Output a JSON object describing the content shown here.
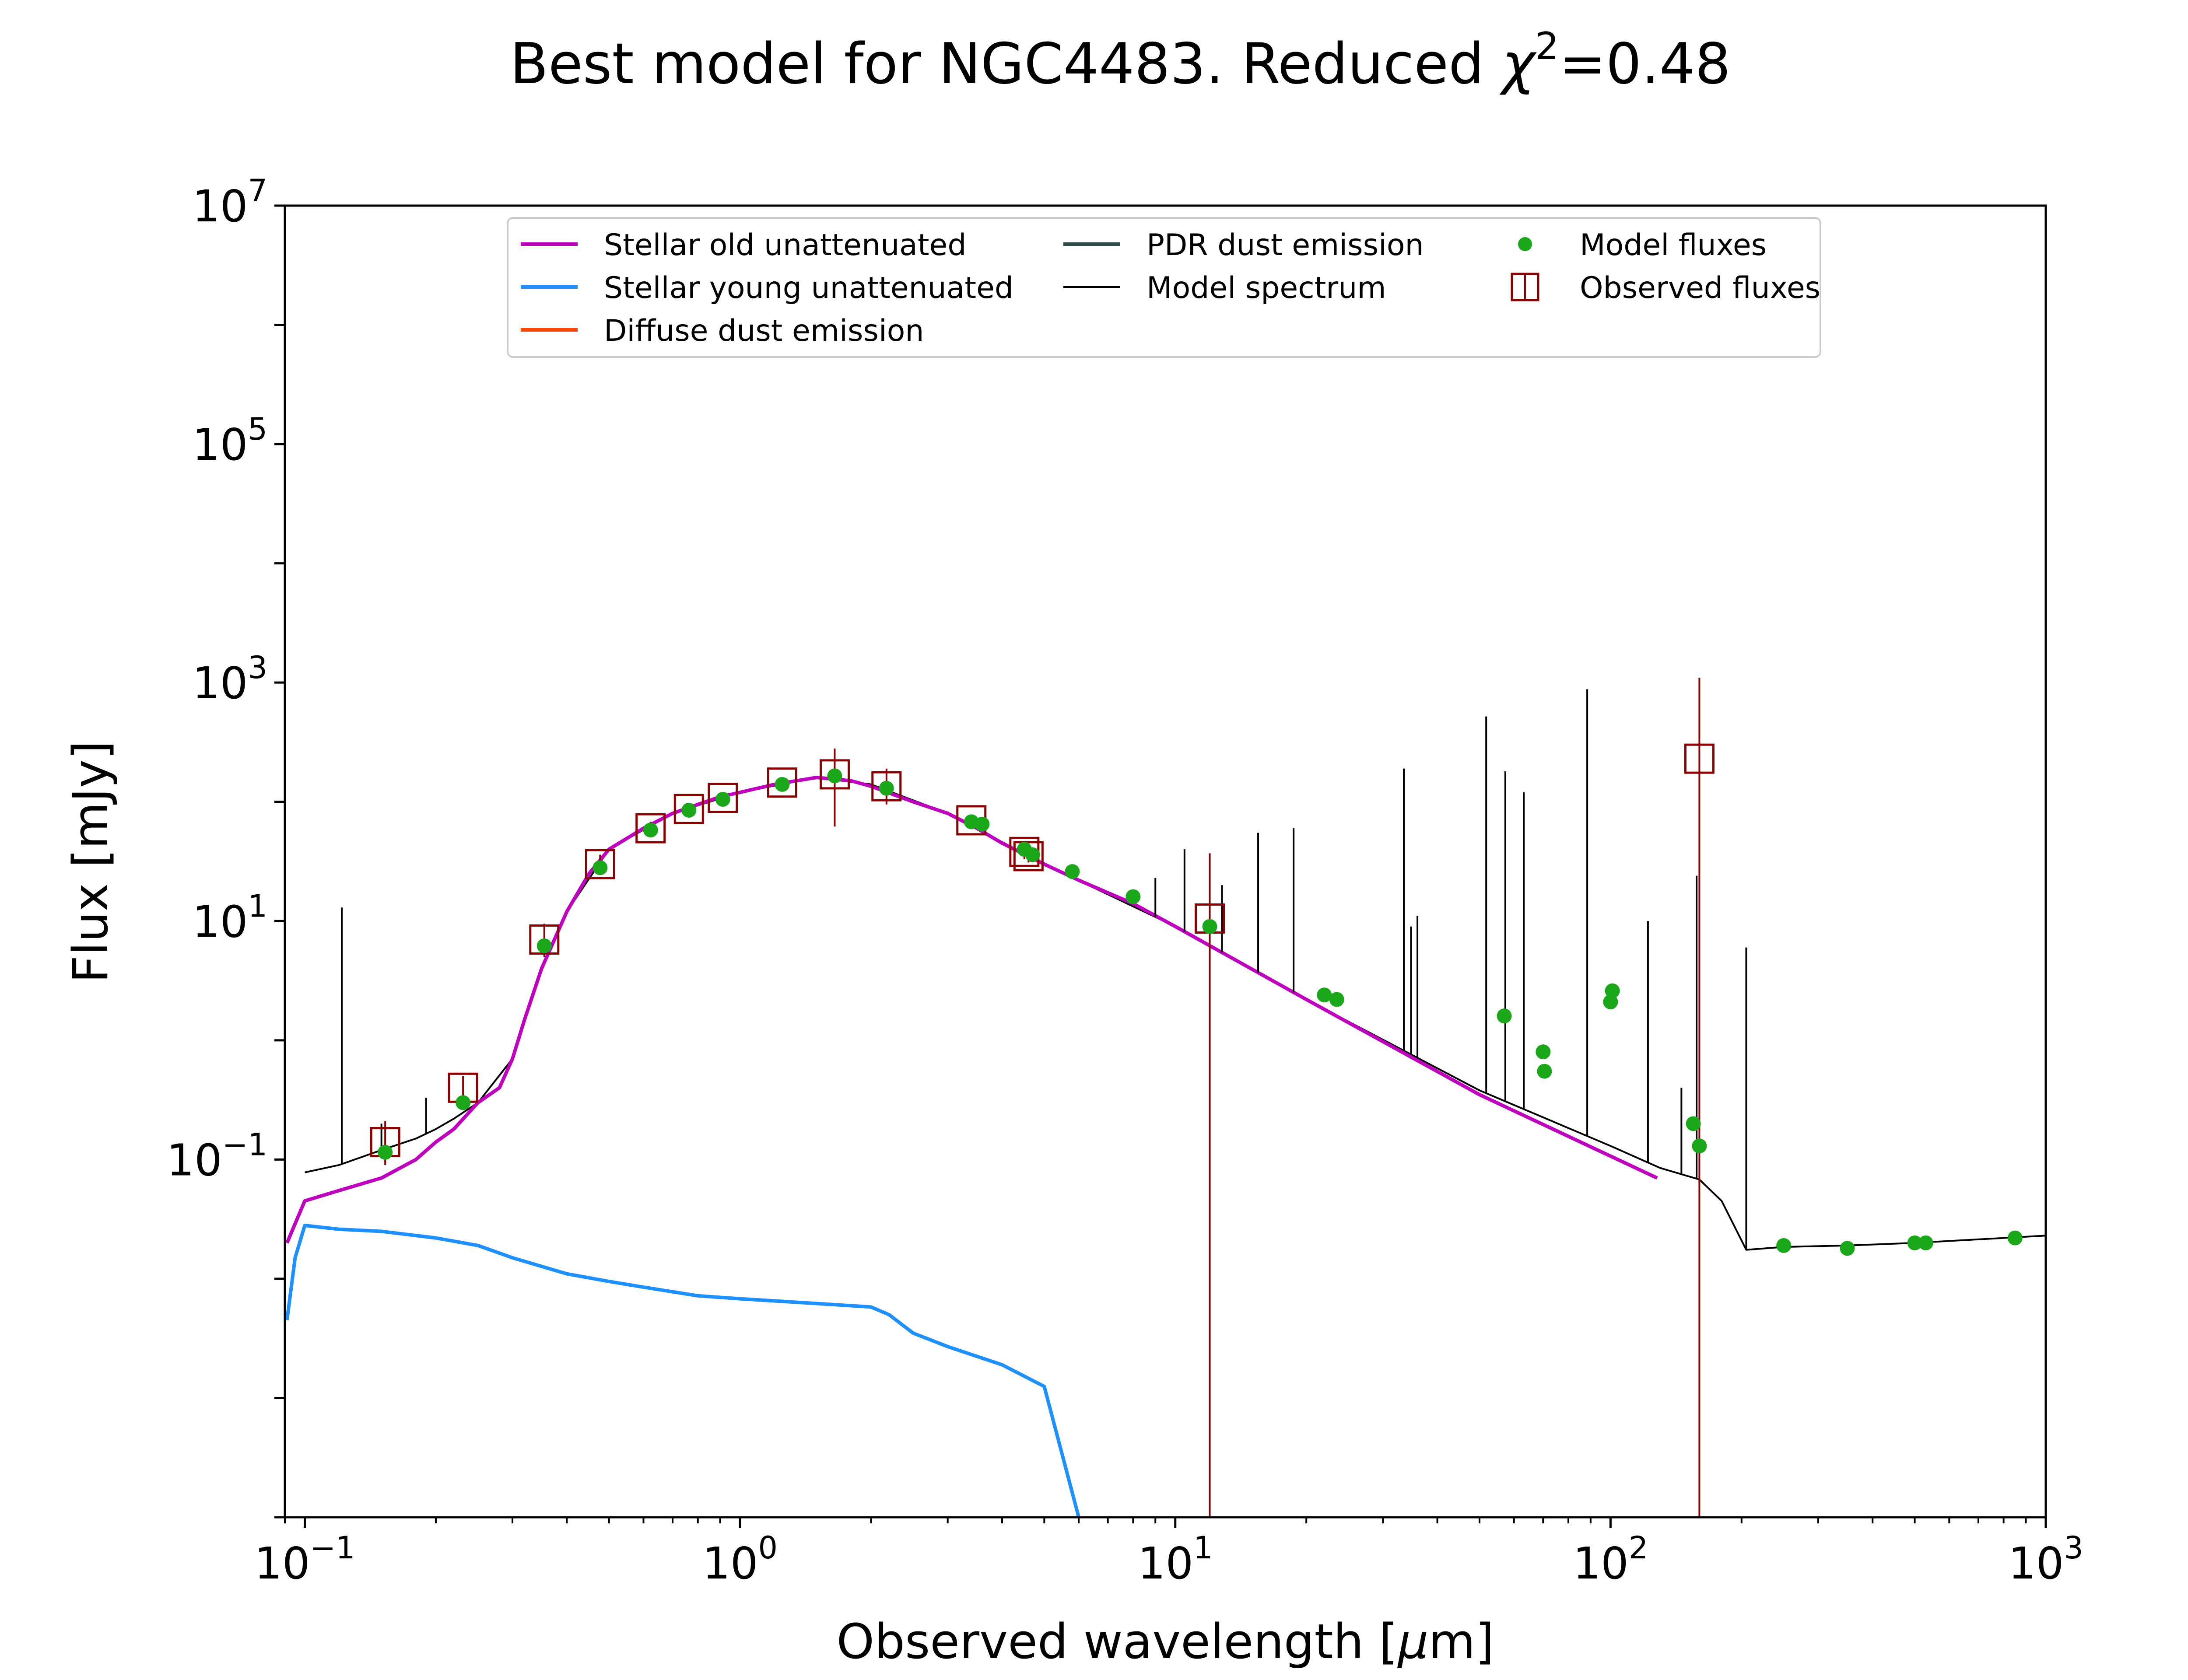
{
  "chart_data": {
    "type": "line",
    "title_prefix": "Best model for NGC4483. Reduced ",
    "title_chi": "χ",
    "title_exp": "2",
    "title_suffix": "=0.48",
    "xlabel_prefix": "Observed wavelength [",
    "xlabel_mu": "μ",
    "xlabel_suffix": "m]",
    "ylabel": "Flux [mJy]",
    "xscale": "log",
    "yscale": "log",
    "xlim": [
      0.09,
      1000
    ],
    "ylim": [
      0.0001,
      10000000
    ],
    "x_ticks": [
      {
        "value": 0.1,
        "base": "10",
        "exp": "−1"
      },
      {
        "value": 1,
        "base": "10",
        "exp": "0"
      },
      {
        "value": 10,
        "base": "10",
        "exp": "1"
      },
      {
        "value": 100,
        "base": "10",
        "exp": "2"
      },
      {
        "value": 1000,
        "base": "10",
        "exp": "3"
      }
    ],
    "y_ticks": [
      {
        "value": 0.1,
        "base": "10",
        "exp": "−1"
      },
      {
        "value": 10,
        "base": "10",
        "exp": "1"
      },
      {
        "value": 1000,
        "base": "10",
        "exp": "3"
      },
      {
        "value": 100000,
        "base": "10",
        "exp": "5"
      },
      {
        "value": 10000000,
        "base": "10",
        "exp": "7"
      }
    ],
    "legend_position": "top",
    "legend": [
      {
        "label": "Stellar old unattenuated",
        "kind": "line",
        "color": "#bf00bf"
      },
      {
        "label": "Stellar young unattenuated",
        "kind": "line",
        "color": "#1e90ff"
      },
      {
        "label": "Diffuse dust emission",
        "kind": "line",
        "color": "#ff4500"
      },
      {
        "label": "PDR dust emission",
        "kind": "line",
        "color": "#2f4f4f"
      },
      {
        "label": "Model spectrum",
        "kind": "thinline",
        "color": "#000000"
      },
      {
        "label": "Model fluxes",
        "kind": "dot",
        "color": "#1aa81a"
      },
      {
        "label": "Observed fluxes",
        "kind": "square",
        "color": "#8b0000"
      }
    ],
    "series": [
      {
        "name": "Stellar old unattenuated",
        "color": "#bf00bf",
        "x": [
          0.091,
          0.1,
          0.12,
          0.15,
          0.18,
          0.2,
          0.22,
          0.25,
          0.28,
          0.3,
          0.32,
          0.35,
          0.4,
          0.45,
          0.5,
          0.6,
          0.7,
          0.8,
          0.9,
          1.0,
          1.2,
          1.5,
          1.8,
          2.0,
          2.5,
          3.0,
          3.5,
          4.0,
          5.0,
          6.0,
          8.0,
          10,
          20,
          50,
          128
        ],
        "y": [
          0.02,
          0.045,
          0.055,
          0.07,
          0.1,
          0.14,
          0.18,
          0.3,
          0.4,
          0.7,
          1.5,
          4.0,
          12,
          25,
          40,
          60,
          80,
          95,
          110,
          120,
          140,
          160,
          150,
          135,
          100,
          80,
          60,
          45,
          30,
          22,
          14,
          9.0,
          2.2,
          0.35,
          0.07
        ]
      },
      {
        "name": "Stellar young unattenuated",
        "color": "#1e90ff",
        "x": [
          0.091,
          0.095,
          0.1,
          0.12,
          0.15,
          0.2,
          0.25,
          0.3,
          0.4,
          0.5,
          0.6,
          0.8,
          1.0,
          1.5,
          2.0,
          2.2,
          2.5,
          3.0,
          4.0,
          5.0,
          6.0
        ],
        "y": [
          0.0045,
          0.015,
          0.028,
          0.026,
          0.025,
          0.022,
          0.019,
          0.015,
          0.011,
          0.0095,
          0.0085,
          0.0072,
          0.0068,
          0.0062,
          0.0058,
          0.005,
          0.0035,
          0.0027,
          0.0019,
          0.00125,
          0.0001
        ]
      },
      {
        "name": "Model spectrum",
        "color": "#000000",
        "x": [
          0.1,
          0.12,
          0.15,
          0.18,
          0.2,
          0.22,
          0.25,
          0.3,
          0.35,
          0.4,
          0.5,
          0.7,
          1.0,
          1.5,
          2.0,
          3.0,
          5.0,
          10,
          20,
          50,
          100,
          130,
          160,
          180,
          205,
          250,
          350,
          500,
          1000
        ],
        "y": [
          0.078,
          0.09,
          0.12,
          0.15,
          0.18,
          0.22,
          0.3,
          0.7,
          4.0,
          12,
          40,
          80,
          120,
          160,
          140,
          80,
          30,
          9.0,
          2.2,
          0.38,
          0.13,
          0.085,
          0.068,
          0.045,
          0.0175,
          0.0185,
          0.019,
          0.02,
          0.023
        ]
      }
    ],
    "emission_lines": [
      {
        "x": 0.1216,
        "y": 13
      },
      {
        "x": 0.15,
        "y": 0.2
      },
      {
        "x": 0.19,
        "y": 0.33
      },
      {
        "x": 9.0,
        "y": 23
      },
      {
        "x": 10.5,
        "y": 40
      },
      {
        "x": 12.8,
        "y": 20
      },
      {
        "x": 15.5,
        "y": 55
      },
      {
        "x": 18.7,
        "y": 60
      },
      {
        "x": 33.5,
        "y": 190
      },
      {
        "x": 34.8,
        "y": 9
      },
      {
        "x": 36.0,
        "y": 11
      },
      {
        "x": 51.8,
        "y": 520
      },
      {
        "x": 57.3,
        "y": 180
      },
      {
        "x": 63.2,
        "y": 120
      },
      {
        "x": 88.4,
        "y": 880
      },
      {
        "x": 121.9,
        "y": 10
      },
      {
        "x": 145.5,
        "y": 0.4
      },
      {
        "x": 157.7,
        "y": 24
      },
      {
        "x": 205.0,
        "y": 6
      }
    ],
    "model_fluxes": [
      {
        "x": 0.153,
        "y": 0.115
      },
      {
        "x": 0.231,
        "y": 0.3
      },
      {
        "x": 0.355,
        "y": 6.2
      },
      {
        "x": 0.477,
        "y": 28
      },
      {
        "x": 0.623,
        "y": 58
      },
      {
        "x": 0.763,
        "y": 85
      },
      {
        "x": 0.913,
        "y": 105
      },
      {
        "x": 1.25,
        "y": 140
      },
      {
        "x": 1.65,
        "y": 165
      },
      {
        "x": 2.17,
        "y": 130
      },
      {
        "x": 3.4,
        "y": 68
      },
      {
        "x": 3.6,
        "y": 65
      },
      {
        "x": 4.5,
        "y": 40
      },
      {
        "x": 4.7,
        "y": 36
      },
      {
        "x": 5.8,
        "y": 26
      },
      {
        "x": 8.0,
        "y": 16
      },
      {
        "x": 12.0,
        "y": 9.0
      },
      {
        "x": 22.0,
        "y": 2.4
      },
      {
        "x": 23.5,
        "y": 2.2
      },
      {
        "x": 57.0,
        "y": 1.6
      },
      {
        "x": 70.0,
        "y": 0.8
      },
      {
        "x": 70.5,
        "y": 0.55
      },
      {
        "x": 100.0,
        "y": 2.1
      },
      {
        "x": 101.0,
        "y": 2.6
      },
      {
        "x": 155.0,
        "y": 0.2
      },
      {
        "x": 160.0,
        "y": 0.13
      },
      {
        "x": 250.0,
        "y": 0.019
      },
      {
        "x": 350.0,
        "y": 0.018
      },
      {
        "x": 500.0,
        "y": 0.02
      },
      {
        "x": 530.0,
        "y": 0.02
      },
      {
        "x": 850.0,
        "y": 0.022
      }
    ],
    "observed_fluxes": [
      {
        "x": 0.153,
        "y": 0.14,
        "ylow": 0.09,
        "yhigh": 0.21
      },
      {
        "x": 0.231,
        "y": 0.4,
        "ylow": 0.3,
        "yhigh": 0.5
      },
      {
        "x": 0.355,
        "y": 7.0,
        "ylow": 5.0,
        "yhigh": 9.5
      },
      {
        "x": 0.477,
        "y": 30,
        "ylow": 25,
        "yhigh": 36
      },
      {
        "x": 0.623,
        "y": 60,
        "ylow": 52,
        "yhigh": 68
      },
      {
        "x": 0.763,
        "y": 87,
        "ylow": 78,
        "yhigh": 96
      },
      {
        "x": 0.913,
        "y": 108,
        "ylow": 98,
        "yhigh": 118
      },
      {
        "x": 1.25,
        "y": 145,
        "ylow": 130,
        "yhigh": 160
      },
      {
        "x": 1.65,
        "y": 170,
        "ylow": 62,
        "yhigh": 280
      },
      {
        "x": 2.17,
        "y": 135,
        "ylow": 95,
        "yhigh": 190
      },
      {
        "x": 3.4,
        "y": 70,
        "ylow": 62,
        "yhigh": 78
      },
      {
        "x": 4.5,
        "y": 38,
        "ylow": 33,
        "yhigh": 43
      },
      {
        "x": 4.6,
        "y": 35,
        "ylow": 31,
        "yhigh": 39
      },
      {
        "x": 12.0,
        "y": 10.5,
        "ylow": 0.0001,
        "yhigh": 37
      },
      {
        "x": 160.0,
        "y": 230,
        "ylow": 0.0001,
        "yhigh": 1100
      }
    ]
  }
}
